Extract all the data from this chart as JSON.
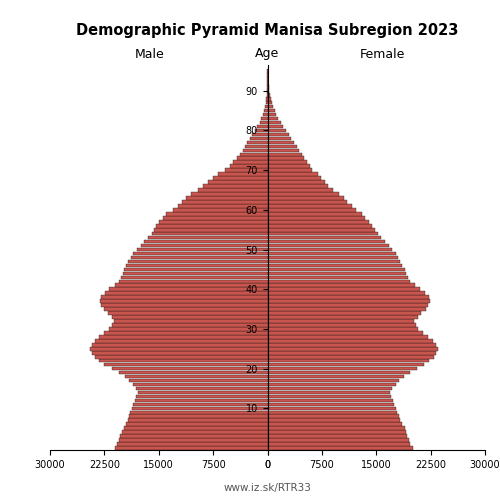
{
  "title": "Demographic Pyramid Manisa Subregion 2023",
  "male_label": "Male",
  "female_label": "Female",
  "age_label": "Age",
  "footer": "www.iz.sk/RTR33",
  "xlim": 30000,
  "bar_color": "#c8554e",
  "bar_edge_color": "#111111",
  "ages": [
    0,
    1,
    2,
    3,
    4,
    5,
    6,
    7,
    8,
    9,
    10,
    11,
    12,
    13,
    14,
    15,
    16,
    17,
    18,
    19,
    20,
    21,
    22,
    23,
    24,
    25,
    26,
    27,
    28,
    29,
    30,
    31,
    32,
    33,
    34,
    35,
    36,
    37,
    38,
    39,
    40,
    41,
    42,
    43,
    44,
    45,
    46,
    47,
    48,
    49,
    50,
    51,
    52,
    53,
    54,
    55,
    56,
    57,
    58,
    59,
    60,
    61,
    62,
    63,
    64,
    65,
    66,
    67,
    68,
    69,
    70,
    71,
    72,
    73,
    74,
    75,
    76,
    77,
    78,
    79,
    80,
    81,
    82,
    83,
    84,
    85,
    86,
    87,
    88,
    89,
    90,
    91,
    92,
    93,
    94,
    95
  ],
  "male": [
    21000,
    20700,
    20500,
    20300,
    20100,
    19800,
    19500,
    19300,
    19100,
    18900,
    18700,
    18500,
    18300,
    18100,
    17900,
    18200,
    18600,
    19100,
    19700,
    20500,
    21500,
    22500,
    23200,
    23800,
    24200,
    24500,
    24200,
    23800,
    23200,
    22500,
    21800,
    21500,
    21200,
    21500,
    22000,
    22500,
    23000,
    23100,
    23000,
    22400,
    21800,
    21000,
    20500,
    20200,
    20000,
    19800,
    19500,
    19200,
    18800,
    18500,
    18000,
    17500,
    17000,
    16500,
    16000,
    15700,
    15400,
    14900,
    14400,
    14000,
    13000,
    12400,
    11800,
    11200,
    10600,
    9600,
    8900,
    8200,
    7500,
    6800,
    5800,
    5200,
    4700,
    4200,
    3800,
    3400,
    3100,
    2800,
    2400,
    2100,
    1700,
    1400,
    1100,
    870,
    680,
    520,
    380,
    260,
    170,
    110,
    75,
    50,
    30,
    18,
    10,
    5
  ],
  "female": [
    20000,
    19700,
    19500,
    19300,
    19100,
    18900,
    18600,
    18300,
    18100,
    17900,
    17700,
    17500,
    17300,
    17100,
    16900,
    17200,
    17700,
    18200,
    18800,
    19600,
    20600,
    21600,
    22300,
    22900,
    23300,
    23500,
    23200,
    22800,
    22200,
    21500,
    20800,
    20500,
    20200,
    20700,
    21200,
    21800,
    22200,
    22400,
    22300,
    21700,
    21100,
    20300,
    19700,
    19400,
    19100,
    18900,
    18600,
    18300,
    18000,
    17700,
    17200,
    16700,
    16200,
    15700,
    15200,
    14800,
    14400,
    14000,
    13500,
    13100,
    12200,
    11600,
    11000,
    10500,
    9900,
    9000,
    8400,
    7900,
    7400,
    7000,
    6200,
    5800,
    5400,
    5000,
    4700,
    4300,
    4000,
    3700,
    3300,
    3000,
    2500,
    2100,
    1800,
    1500,
    1200,
    1000,
    780,
    580,
    430,
    310,
    220,
    150,
    95,
    60,
    35,
    18
  ]
}
